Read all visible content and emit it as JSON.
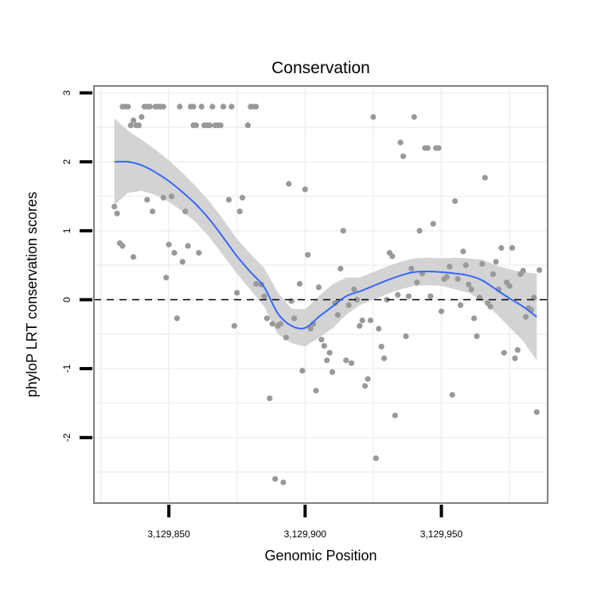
{
  "chart_data": {
    "type": "scatter",
    "title": "Conservation",
    "xlabel": "Genomic Position",
    "ylabel": "phyloP LRT conservation scores",
    "xlim": [
      3129822.5,
      3129989
    ],
    "ylim": [
      -2.95,
      3.1
    ],
    "x_ticks": [
      3129850,
      3129900,
      3129950
    ],
    "x_tick_labels": [
      "3,129,850",
      "3,129,900",
      "3,129,950"
    ],
    "y_ticks": [
      -2,
      -1,
      0,
      1,
      2,
      3
    ],
    "y_tick_labels": [
      "-2",
      "-1",
      "0",
      "1",
      "2",
      "3"
    ],
    "reference_line": {
      "y": 0,
      "style": "dashed"
    },
    "colors": {
      "points": "#999999",
      "smooth": "#3366FF",
      "band": "#d3d3d3",
      "panel_border": "#7f7f7f",
      "grid": "#f2f2f2"
    },
    "points": [
      [
        3129830,
        1.35
      ],
      [
        3129831,
        1.25
      ],
      [
        3129832,
        0.82
      ],
      [
        3129833,
        0.78
      ],
      [
        3129833,
        2.8
      ],
      [
        3129834,
        2.8
      ],
      [
        3129835,
        2.8
      ],
      [
        3129836,
        2.53
      ],
      [
        3129837,
        2.6
      ],
      [
        3129837,
        0.62
      ],
      [
        3129838,
        2.53
      ],
      [
        3129839,
        2.53
      ],
      [
        3129840,
        2.65
      ],
      [
        3129841,
        2.8
      ],
      [
        3129842,
        2.8
      ],
      [
        3129842,
        1.45
      ],
      [
        3129843,
        2.8
      ],
      [
        3129844,
        1.28
      ],
      [
        3129845,
        2.8
      ],
      [
        3129846,
        2.8
      ],
      [
        3129847,
        2.8
      ],
      [
        3129848,
        2.8
      ],
      [
        3129848,
        1.48
      ],
      [
        3129849,
        0.32
      ],
      [
        3129850,
        0.8
      ],
      [
        3129851,
        1.5
      ],
      [
        3129852,
        0.68
      ],
      [
        3129853,
        -0.27
      ],
      [
        3129854,
        2.8
      ],
      [
        3129855,
        0.55
      ],
      [
        3129856,
        1.28
      ],
      [
        3129857,
        0.78
      ],
      [
        3129858,
        2.8
      ],
      [
        3129859,
        2.8
      ],
      [
        3129859,
        2.53
      ],
      [
        3129860,
        2.53
      ],
      [
        3129861,
        0.68
      ],
      [
        3129862,
        2.8
      ],
      [
        3129863,
        2.53
      ],
      [
        3129864,
        2.53
      ],
      [
        3129865,
        2.53
      ],
      [
        3129866,
        2.8
      ],
      [
        3129867,
        2.53
      ],
      [
        3129868,
        2.53
      ],
      [
        3129869,
        2.53
      ],
      [
        3129870,
        2.8
      ],
      [
        3129870,
        2.8
      ],
      [
        3129872,
        1.45
      ],
      [
        3129873,
        2.8
      ],
      [
        3129873,
        2.8
      ],
      [
        3129874,
        -0.38
      ],
      [
        3129875,
        0.1
      ],
      [
        3129876,
        1.28
      ],
      [
        3129877,
        1.48
      ],
      [
        3129879,
        2.53
      ],
      [
        3129879,
        2.53
      ],
      [
        3129880,
        2.8
      ],
      [
        3129881,
        2.8
      ],
      [
        3129882,
        2.8
      ],
      [
        3129882,
        0.23
      ],
      [
        3129884,
        0.22
      ],
      [
        3129885,
        0.05
      ],
      [
        3129886,
        -0.27
      ],
      [
        3129887,
        -1.43
      ],
      [
        3129888,
        -0.35
      ],
      [
        3129889,
        -2.6
      ],
      [
        3129890,
        -0.38
      ],
      [
        3129891,
        -0.35
      ],
      [
        3129892,
        -2.65
      ],
      [
        3129893,
        -0.55
      ],
      [
        3129894,
        1.68
      ],
      [
        3129895,
        -0.02
      ],
      [
        3129896,
        -0.27
      ],
      [
        3129898,
        0.23
      ],
      [
        3129899,
        -1.03
      ],
      [
        3129900,
        1.6
      ],
      [
        3129901,
        0.65
      ],
      [
        3129902,
        -0.42
      ],
      [
        3129903,
        -0.35
      ],
      [
        3129904,
        -1.32
      ],
      [
        3129905,
        0.18
      ],
      [
        3129906,
        -0.58
      ],
      [
        3129907,
        -0.67
      ],
      [
        3129908,
        -0.88
      ],
      [
        3129909,
        -0.77
      ],
      [
        3129910,
        -1.05
      ],
      [
        3129911,
        -0.05
      ],
      [
        3129912,
        -0.22
      ],
      [
        3129913,
        0.45
      ],
      [
        3129914,
        1.0
      ],
      [
        3129915,
        -0.88
      ],
      [
        3129916,
        -0.08
      ],
      [
        3129917,
        -0.92
      ],
      [
        3129918,
        0.15
      ],
      [
        3129919,
        0.0
      ],
      [
        3129920,
        -0.38
      ],
      [
        3129921,
        -0.3
      ],
      [
        3129922,
        -1.25
      ],
      [
        3129923,
        -1.15
      ],
      [
        3129924,
        -0.3
      ],
      [
        3129925,
        2.65
      ],
      [
        3129926,
        -2.3
      ],
      [
        3129927,
        -0.42
      ],
      [
        3129928,
        -0.68
      ],
      [
        3129929,
        -0.85
      ],
      [
        3129930,
        0.0
      ],
      [
        3129931,
        0.68
      ],
      [
        3129932,
        0.63
      ],
      [
        3129933,
        -1.68
      ],
      [
        3129934,
        0.07
      ],
      [
        3129935,
        2.28
      ],
      [
        3129936,
        2.08
      ],
      [
        3129937,
        -0.53
      ],
      [
        3129938,
        0.05
      ],
      [
        3129939,
        0.45
      ],
      [
        3129940,
        2.65
      ],
      [
        3129941,
        0.25
      ],
      [
        3129942,
        1.0
      ],
      [
        3129943,
        0.38
      ],
      [
        3129944,
        2.2
      ],
      [
        3129945,
        2.2
      ],
      [
        3129946,
        0.05
      ],
      [
        3129947,
        1.1
      ],
      [
        3129948,
        2.2
      ],
      [
        3129949,
        2.2
      ],
      [
        3129950,
        -0.17
      ],
      [
        3129951,
        0.3
      ],
      [
        3129952,
        0.33
      ],
      [
        3129953,
        0.48
      ],
      [
        3129954,
        -1.38
      ],
      [
        3129955,
        1.43
      ],
      [
        3129956,
        0.3
      ],
      [
        3129957,
        -0.08
      ],
      [
        3129958,
        0.7
      ],
      [
        3129959,
        0.5
      ],
      [
        3129960,
        0.22
      ],
      [
        3129961,
        0.15
      ],
      [
        3129962,
        -0.27
      ],
      [
        3129963,
        -0.53
      ],
      [
        3129964,
        0.03
      ],
      [
        3129965,
        0.52
      ],
      [
        3129966,
        1.77
      ],
      [
        3129967,
        -0.05
      ],
      [
        3129968,
        -0.1
      ],
      [
        3129969,
        0.37
      ],
      [
        3129970,
        0.55
      ],
      [
        3129971,
        0.15
      ],
      [
        3129972,
        0.75
      ],
      [
        3129973,
        -0.77
      ],
      [
        3129974,
        0.25
      ],
      [
        3129975,
        0.2
      ],
      [
        3129976,
        0.75
      ],
      [
        3129977,
        -0.85
      ],
      [
        3129978,
        -0.73
      ],
      [
        3129979,
        0.37
      ],
      [
        3129980,
        0.42
      ],
      [
        3129981,
        -0.25
      ],
      [
        3129982,
        -0.12
      ],
      [
        3129983,
        -0.15
      ],
      [
        3129984,
        0.03
      ],
      [
        3129985,
        -1.63
      ],
      [
        3129986,
        0.43
      ]
    ],
    "smooth": {
      "x": [
        3129830,
        3129835,
        3129840,
        3129845,
        3129850,
        3129855,
        3129860,
        3129865,
        3129870,
        3129875,
        3129880,
        3129885,
        3129890,
        3129895,
        3129900,
        3129905,
        3129910,
        3129915,
        3129920,
        3129925,
        3129930,
        3129935,
        3129940,
        3129945,
        3129950,
        3129955,
        3129960,
        3129965,
        3129970,
        3129975,
        3129980,
        3129985
      ],
      "y": [
        2.0,
        2.0,
        1.95,
        1.85,
        1.72,
        1.56,
        1.38,
        1.16,
        0.9,
        0.63,
        0.4,
        0.18,
        -0.2,
        -0.38,
        -0.41,
        -0.25,
        -0.1,
        0.05,
        0.12,
        0.2,
        0.28,
        0.35,
        0.4,
        0.41,
        0.4,
        0.38,
        0.35,
        0.28,
        0.15,
        0.02,
        -0.1,
        -0.25
      ],
      "lower": [
        1.37,
        1.55,
        1.58,
        1.52,
        1.42,
        1.28,
        1.12,
        0.9,
        0.64,
        0.38,
        0.14,
        -0.1,
        -0.5,
        -0.63,
        -0.68,
        -0.55,
        -0.42,
        -0.22,
        -0.08,
        0.0,
        0.08,
        0.15,
        0.2,
        0.21,
        0.2,
        0.15,
        0.1,
        -0.02,
        -0.2,
        -0.4,
        -0.6,
        -0.88
      ],
      "upper": [
        2.63,
        2.45,
        2.32,
        2.18,
        2.02,
        1.84,
        1.64,
        1.42,
        1.16,
        0.88,
        0.66,
        0.46,
        0.1,
        -0.13,
        -0.14,
        0.05,
        0.22,
        0.32,
        0.32,
        0.4,
        0.48,
        0.55,
        0.6,
        0.61,
        0.6,
        0.61,
        0.6,
        0.58,
        0.5,
        0.44,
        0.4,
        0.38
      ]
    }
  }
}
